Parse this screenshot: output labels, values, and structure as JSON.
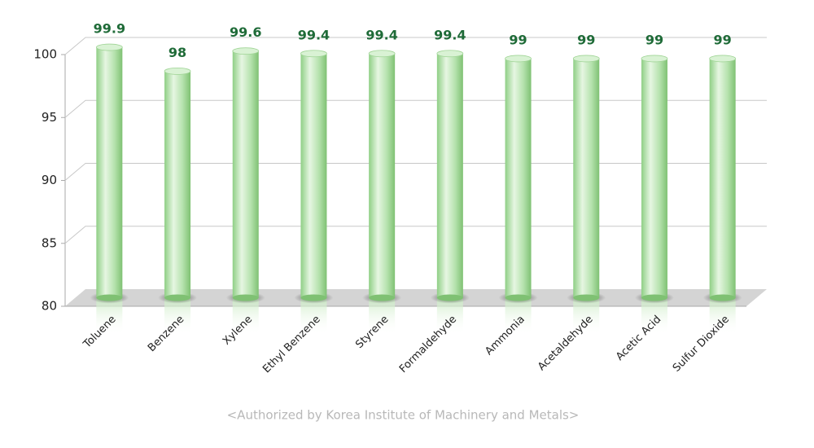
{
  "chart_data": {
    "type": "bar",
    "categories": [
      "Toluene",
      "Benzene",
      "Xylene",
      "Ethyl Benzene",
      "Styrene",
      "Formaldehyde",
      "Ammonia",
      "Acetaldehyde",
      "Acetic Acid",
      "Sulfur Dioxide"
    ],
    "values": [
      99.9,
      98,
      99.6,
      99.4,
      99.4,
      99.4,
      99,
      99,
      99,
      99
    ],
    "color": "#a8dca0",
    "ylim": [
      80,
      100
    ],
    "yticks": [
      80,
      85,
      90,
      95,
      100
    ],
    "grid": true,
    "source": "<Authorized by Korea Institute of Machinery and Metals>"
  }
}
